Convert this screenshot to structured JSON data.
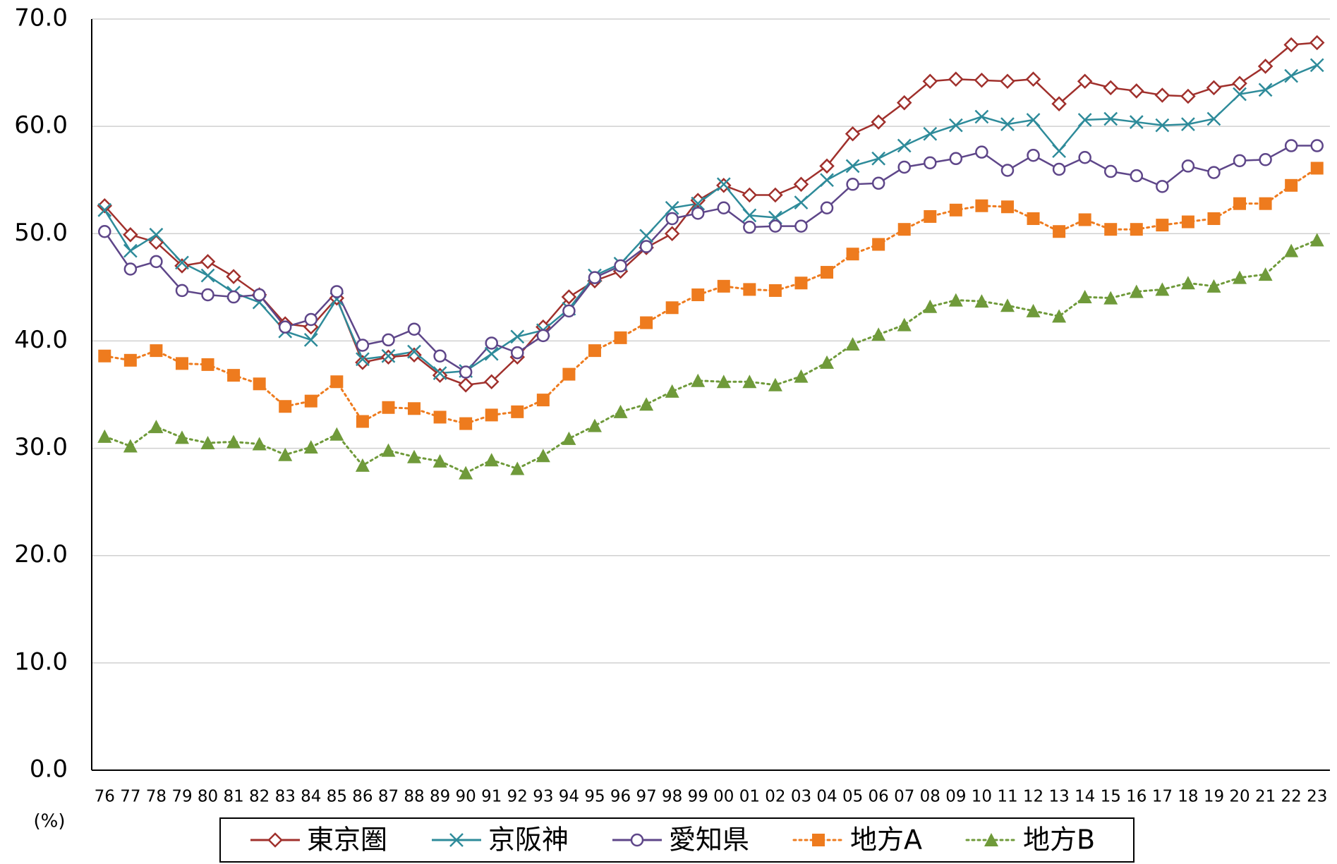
{
  "chart_data": {
    "type": "line",
    "y_unit_label": "(%)",
    "categories": [
      "76",
      "77",
      "78",
      "79",
      "80",
      "81",
      "82",
      "83",
      "84",
      "85",
      "86",
      "87",
      "88",
      "89",
      "90",
      "91",
      "92",
      "93",
      "94",
      "95",
      "96",
      "97",
      "98",
      "99",
      "00",
      "01",
      "02",
      "03",
      "04",
      "05",
      "06",
      "07",
      "08",
      "09",
      "10",
      "11",
      "12",
      "13",
      "14",
      "15",
      "16",
      "17",
      "18",
      "19",
      "20",
      "21",
      "22",
      "23"
    ],
    "ylim": [
      0,
      70
    ],
    "yticks": [
      {
        "value": 0,
        "label": "0.0"
      },
      {
        "value": 10,
        "label": "10.0"
      },
      {
        "value": 20,
        "label": "20.0"
      },
      {
        "value": 30,
        "label": "30.0"
      },
      {
        "value": 40,
        "label": "40.0"
      },
      {
        "value": 50,
        "label": "50.0"
      },
      {
        "value": 60,
        "label": "60.0"
      },
      {
        "value": 70,
        "label": "70.0"
      }
    ],
    "grid": true,
    "legend": "bottom",
    "series": [
      {
        "name": "東京圏",
        "color": "#a0302c",
        "marker": "diamond",
        "line_style": "solid",
        "values": [
          52.6,
          49.9,
          49.2,
          47.0,
          47.4,
          46.0,
          44.3,
          41.6,
          41.3,
          44.0,
          38.0,
          38.5,
          38.7,
          36.8,
          35.9,
          36.2,
          38.5,
          41.3,
          44.1,
          45.6,
          46.5,
          48.7,
          50.0,
          53.1,
          54.5,
          53.6,
          53.6,
          54.6,
          56.3,
          59.3,
          60.4,
          62.2,
          64.2,
          64.4,
          64.3,
          64.2,
          64.4,
          62.1,
          64.2,
          63.6,
          63.3,
          62.9,
          62.8,
          63.6,
          64.0,
          65.6,
          67.6,
          67.8
        ]
      },
      {
        "name": "京阪神",
        "color": "#2e8b9a",
        "marker": "cross",
        "line_style": "solid",
        "values": [
          52.2,
          48.4,
          49.9,
          47.3,
          46.1,
          44.5,
          43.6,
          40.9,
          40.1,
          43.9,
          38.3,
          38.6,
          39.0,
          37.0,
          37.2,
          38.8,
          40.4,
          41.0,
          43.0,
          46.1,
          47.2,
          49.8,
          52.4,
          52.8,
          54.6,
          51.7,
          51.5,
          52.9,
          55.0,
          56.3,
          57.0,
          58.2,
          59.3,
          60.1,
          60.9,
          60.2,
          60.6,
          57.7,
          60.6,
          60.7,
          60.4,
          60.1,
          60.2,
          60.7,
          63.0,
          63.4,
          64.7,
          65.7
        ]
      },
      {
        "name": "愛知県",
        "color": "#5e4689",
        "marker": "circle",
        "line_style": "solid",
        "values": [
          50.2,
          46.7,
          47.4,
          44.7,
          44.3,
          44.1,
          44.3,
          41.3,
          42.0,
          44.6,
          39.6,
          40.1,
          41.1,
          38.6,
          37.1,
          39.8,
          38.9,
          40.5,
          42.8,
          45.9,
          47.0,
          48.8,
          51.4,
          51.9,
          52.4,
          50.6,
          50.7,
          50.7,
          52.4,
          54.6,
          54.7,
          56.2,
          56.6,
          57.0,
          57.6,
          55.9,
          57.3,
          56.0,
          57.1,
          55.8,
          55.4,
          54.4,
          56.3,
          55.7,
          56.8,
          56.9,
          58.2,
          58.2
        ]
      },
      {
        "name": "地方A",
        "color": "#ee7b1e",
        "marker": "square",
        "line_style": "dotted",
        "values": [
          38.6,
          38.2,
          39.1,
          37.9,
          37.8,
          36.8,
          36.0,
          33.9,
          34.4,
          36.2,
          32.5,
          33.8,
          33.7,
          32.9,
          32.3,
          33.1,
          33.4,
          34.5,
          36.9,
          39.1,
          40.3,
          41.7,
          43.1,
          44.3,
          45.1,
          44.8,
          44.7,
          45.4,
          46.4,
          48.1,
          49.0,
          50.4,
          51.6,
          52.2,
          52.6,
          52.5,
          51.4,
          50.2,
          51.3,
          50.4,
          50.4,
          50.8,
          51.1,
          51.4,
          52.8,
          52.8,
          54.5,
          56.1
        ]
      },
      {
        "name": "地方B",
        "color": "#6f9a3a",
        "marker": "triangle",
        "line_style": "dotted",
        "values": [
          31.1,
          30.2,
          32.0,
          31.0,
          30.5,
          30.6,
          30.4,
          29.4,
          30.1,
          31.3,
          28.4,
          29.8,
          29.2,
          28.8,
          27.7,
          28.9,
          28.1,
          29.3,
          30.9,
          32.1,
          33.4,
          34.1,
          35.3,
          36.3,
          36.2,
          36.2,
          35.9,
          36.7,
          38.0,
          39.7,
          40.6,
          41.5,
          43.2,
          43.8,
          43.7,
          43.3,
          42.8,
          42.3,
          44.1,
          44.0,
          44.6,
          44.8,
          45.4,
          45.1,
          45.9,
          46.2,
          48.4,
          49.4
        ]
      }
    ]
  }
}
